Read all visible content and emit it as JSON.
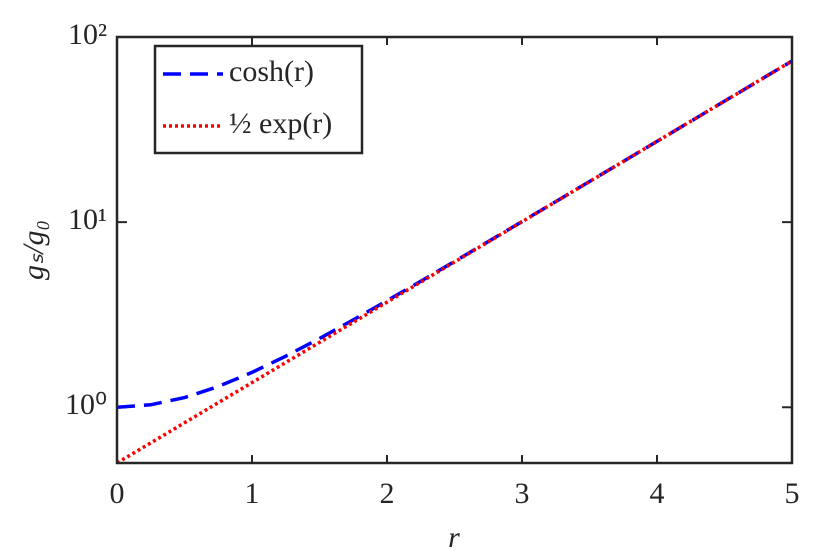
{
  "chart_data": {
    "type": "line",
    "xlabel": "r",
    "ylabel": "gₛ/g₀",
    "x": [
      0,
      0.25,
      0.5,
      0.75,
      1,
      1.25,
      1.5,
      1.75,
      2,
      2.25,
      2.5,
      2.75,
      3,
      3.25,
      3.5,
      3.75,
      4,
      4.25,
      4.5,
      4.75,
      5
    ],
    "series": [
      {
        "name": "cosh(r)",
        "color": "#0000ff",
        "dash": "dashed",
        "values": [
          1,
          1.0314,
          1.1276,
          1.2947,
          1.5431,
          1.8884,
          2.3524,
          2.9642,
          3.7622,
          4.7966,
          6.1323,
          7.8533,
          10.0677,
          12.9146,
          16.5728,
          21.2722,
          27.3082,
          35.06,
          45.0141,
          57.7965,
          74.2099
        ]
      },
      {
        "name": "½ exp(r)",
        "color": "#ff0000",
        "dash": "dotted",
        "values": [
          0.5,
          0.642,
          0.8244,
          1.0585,
          1.3591,
          1.7452,
          2.2408,
          2.8773,
          3.6945,
          4.7438,
          6.0912,
          7.8213,
          10.0428,
          12.8951,
          16.5577,
          21.2604,
          27.2991,
          35.0529,
          45.0086,
          57.7922,
          74.2066
        ]
      }
    ],
    "xlim": [
      0,
      5
    ],
    "xticks": [
      0,
      1,
      2,
      3,
      4,
      5
    ],
    "ylim": [
      0.5,
      100
    ],
    "yscale": "log",
    "yticks": [
      {
        "value": 1,
        "label": "10⁰"
      },
      {
        "value": 10,
        "label": "10¹"
      },
      {
        "value": 100,
        "label": "10²"
      }
    ],
    "legend": "upper left",
    "grid": false
  }
}
